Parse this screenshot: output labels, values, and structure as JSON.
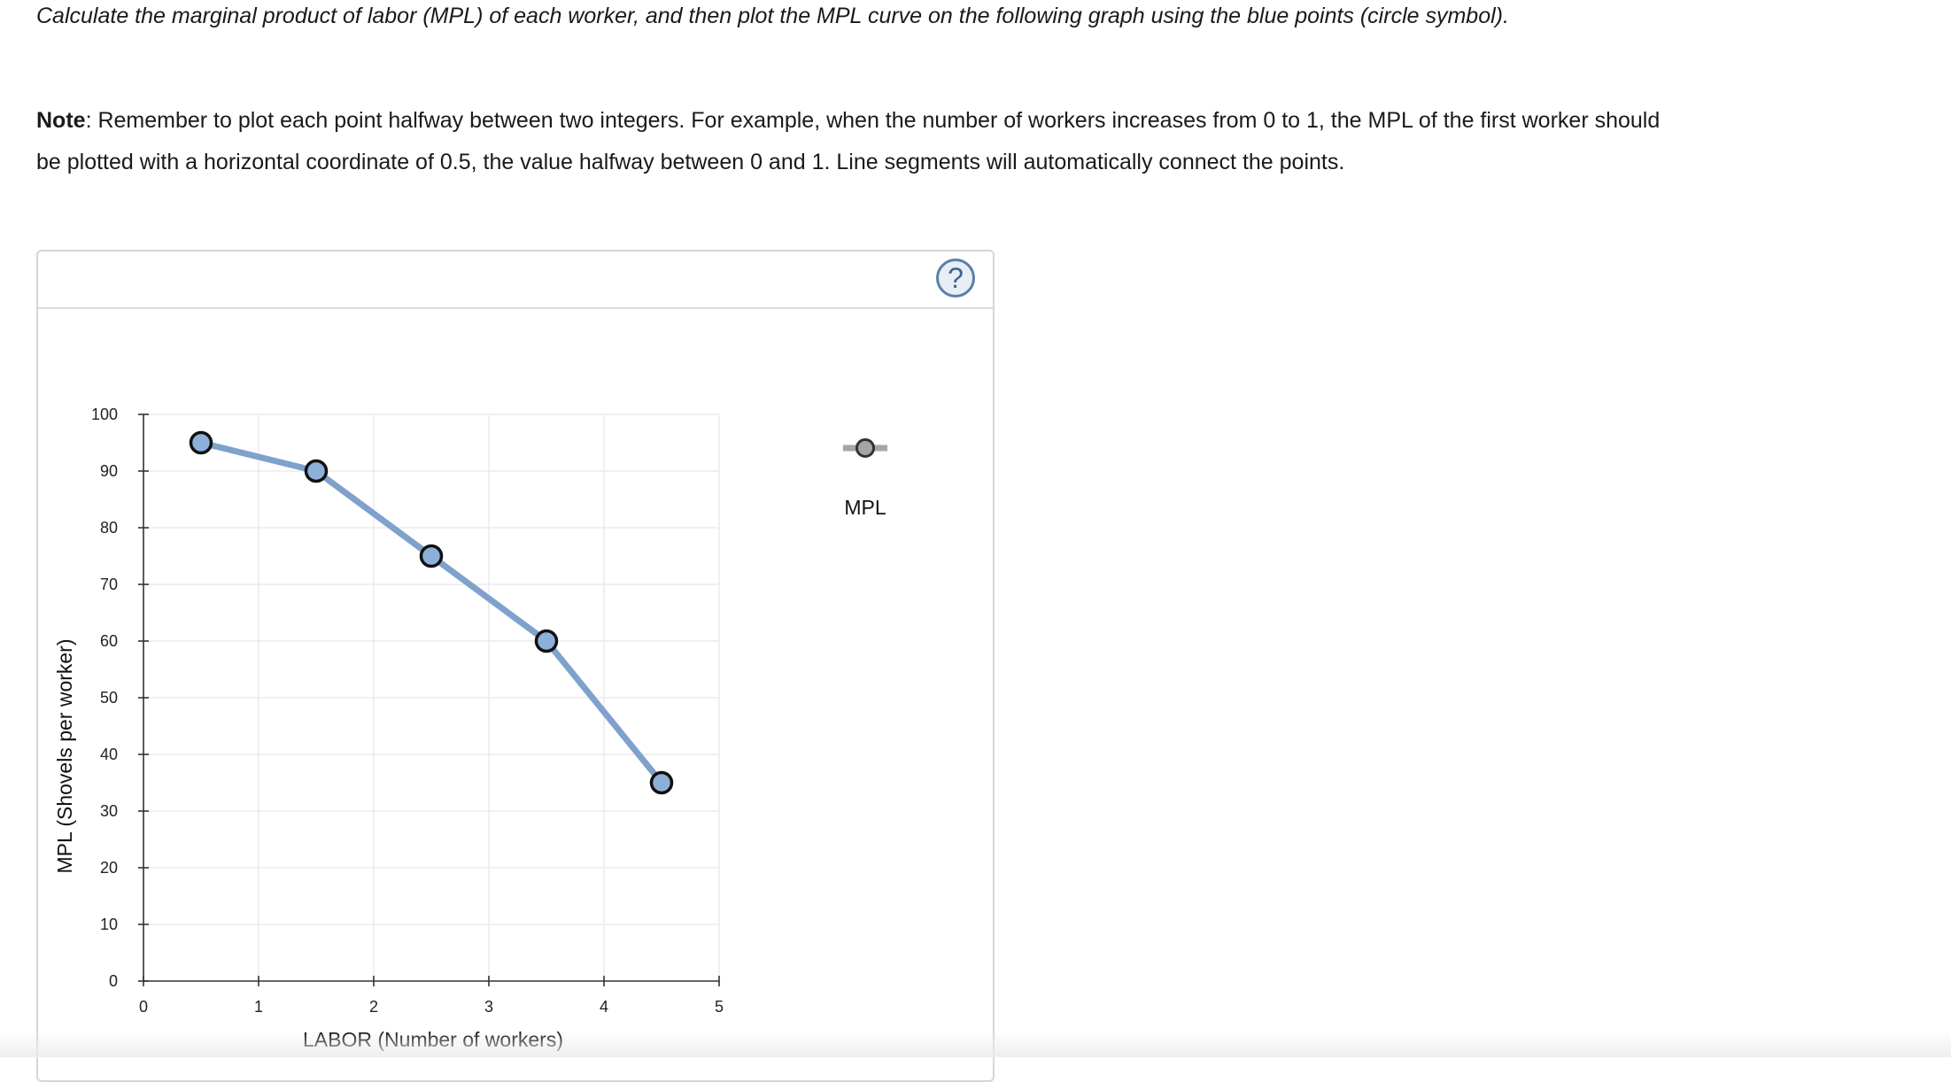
{
  "instructions": {
    "line1": "Calculate the marginal product of labor (MPL) of each worker, and then plot the MPL curve on the following graph using the blue points (circle symbol).",
    "note_label": "Note",
    "note_text": ": Remember to plot each point halfway between two integers. For example, when the number of workers increases from 0 to 1, the MPL of the first worker should be plotted with a horizontal coordinate of 0.5, the value halfway between 0 and 1. Line segments will automatically connect the points."
  },
  "help_button": {
    "label": "?",
    "icon": "question-circle-icon"
  },
  "chart_data": {
    "type": "line",
    "xlabel": "LABOR (Number of workers)",
    "ylabel": "MPL (Shovels per worker)",
    "xlim": [
      0,
      5
    ],
    "ylim": [
      0,
      100
    ],
    "xticks": [
      0,
      1,
      2,
      3,
      4,
      5
    ],
    "yticks": [
      0,
      10,
      20,
      30,
      40,
      50,
      60,
      70,
      80,
      90,
      100
    ],
    "grid": true,
    "legend_position": "right",
    "series": [
      {
        "name": "MPL",
        "color": "#7fa1cc",
        "marker_fill": "#8db0d8",
        "marker_stroke": "#111111",
        "points": [
          {
            "x": 0.5,
            "y": 95
          },
          {
            "x": 1.5,
            "y": 90
          },
          {
            "x": 2.5,
            "y": 75
          },
          {
            "x": 3.5,
            "y": 60
          },
          {
            "x": 4.5,
            "y": 35
          }
        ]
      }
    ],
    "legend_marker_color": "#a6a6a6"
  }
}
